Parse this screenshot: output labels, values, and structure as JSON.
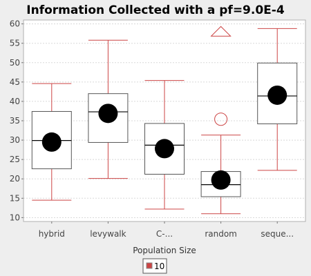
{
  "chart_data": {
    "type": "box",
    "title": "Information Collected with a pf=9.0E-4",
    "xlabel": "Population Size",
    "ylabel": "",
    "ylim": [
      9,
      61
    ],
    "yticks": [
      10,
      15,
      20,
      25,
      30,
      35,
      40,
      45,
      50,
      55,
      60
    ],
    "grid": true,
    "legend_position": "bottom",
    "categories": [
      "hybrid",
      "levywalk",
      "C-...",
      "random",
      "seque..."
    ],
    "series": [
      {
        "name": "10",
        "color": "#cc4444",
        "boxes": [
          {
            "category": "hybrid",
            "whisker_low": 14.5,
            "q1": 22.6,
            "median": 29.9,
            "q3": 37.4,
            "whisker_high": 44.6,
            "mean": 29.5,
            "outliers": [],
            "far_outliers": []
          },
          {
            "category": "levywalk",
            "whisker_low": 20.1,
            "q1": 29.4,
            "median": 37.3,
            "q3": 42.0,
            "whisker_high": 55.8,
            "mean": 36.9,
            "outliers": [],
            "far_outliers": []
          },
          {
            "category": "C-...",
            "whisker_low": 12.2,
            "q1": 21.2,
            "median": 28.7,
            "q3": 34.3,
            "whisker_high": 45.4,
            "mean": 27.8,
            "outliers": [],
            "far_outliers": []
          },
          {
            "category": "random",
            "whisker_low": 11.0,
            "q1": 15.4,
            "median": 18.5,
            "q3": 21.9,
            "whisker_high": 31.3,
            "mean": 19.7,
            "outliers": [
              35.4
            ],
            "far_outliers": [
              57.2
            ]
          },
          {
            "category": "seque...",
            "whisker_low": 22.2,
            "q1": 34.2,
            "median": 41.4,
            "q3": 49.9,
            "whisker_high": 58.8,
            "mean": 41.6,
            "outliers": [],
            "far_outliers": []
          }
        ]
      }
    ]
  }
}
